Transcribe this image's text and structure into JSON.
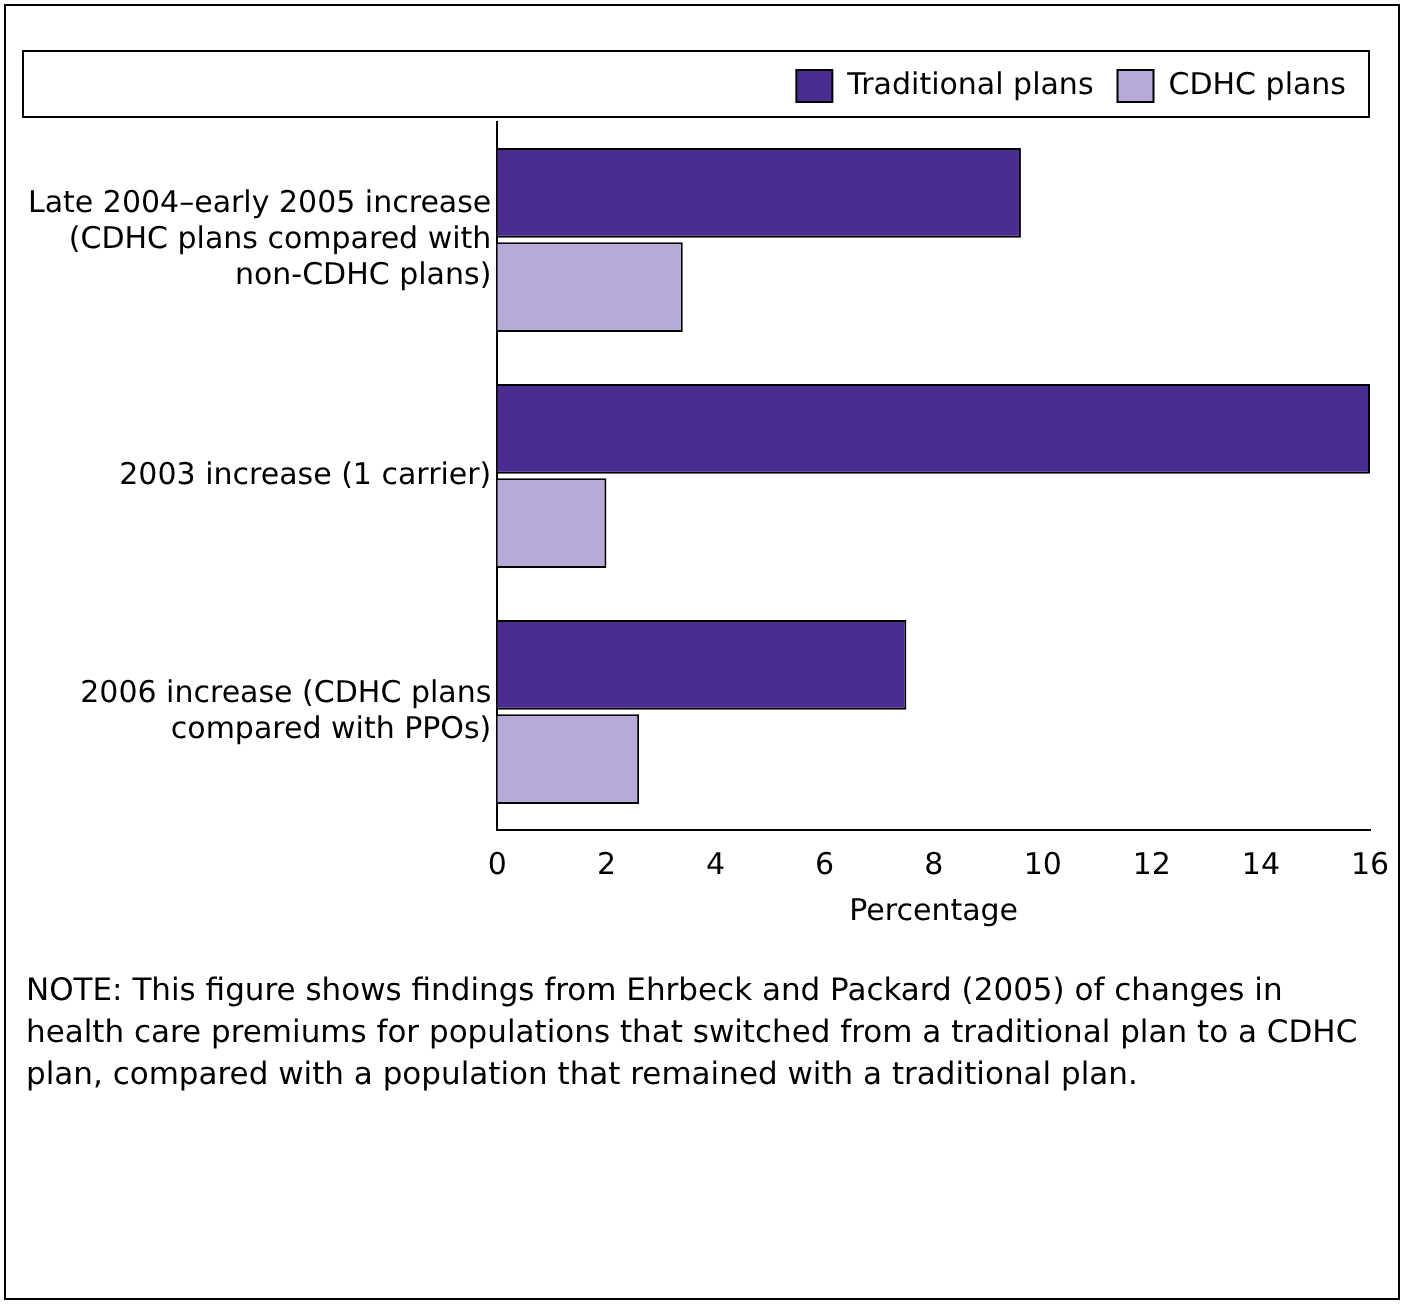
{
  "chart_data": {
    "type": "bar",
    "orientation": "horizontal",
    "xlabel": "Percentage",
    "categories": [
      "Late 2004–early 2005 increase\n(CDHC plans compared with\nnon-CDHC plans)",
      "2003 increase (1 carrier)",
      "2006 increase (CDHC plans\ncompared with PPOs)"
    ],
    "series": [
      {
        "name": "Traditional plans",
        "color": "#4b2c91",
        "values": [
          9.6,
          16,
          7.5
        ]
      },
      {
        "name": "CDHC plans",
        "color": "#b8aad8",
        "values": [
          3.4,
          2.0,
          2.6
        ]
      }
    ],
    "xlim": [
      0,
      16
    ],
    "xticks": [
      0,
      2,
      4,
      6,
      8,
      10,
      12,
      14,
      16
    ],
    "grid": false,
    "legend": "top right",
    "annotations": [
      "NOTE: This figure shows findings from Ehrbeck and Packard (2005) of changes in health care premiums for populations that switched from a traditional plan to a CDHC plan, compared with a population that remained with a traditional plan."
    ]
  }
}
